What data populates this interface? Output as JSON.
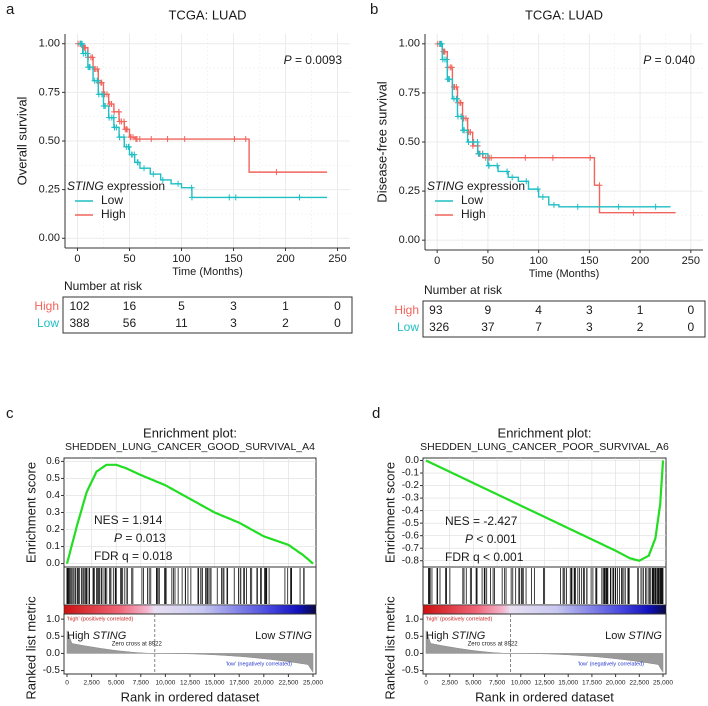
{
  "colors": {
    "high": "#f0655c",
    "low": "#1fbfc4",
    "gsea_line": "#22dd22",
    "grid": "#ebebeb"
  },
  "panels": {
    "a": {
      "letter": "a",
      "title": "TCGA: LUAD",
      "ylabel": "Overall survival",
      "xlabel": "Time (Months)",
      "pvalue_label": "P",
      "pvalue_text": " = 0.0093",
      "legend_title_italic": "STING",
      "legend_title_rest": " expression",
      "legend_low": "Low",
      "legend_high": "High",
      "yticks": [
        "1.00",
        "0.75",
        "0.50",
        "0.25",
        "0.00"
      ],
      "xticks": [
        "0",
        "50",
        "100",
        "150",
        "200",
        "250"
      ],
      "risk_title": "Number at risk",
      "risk_rows": [
        {
          "label": "High",
          "values": [
            "102",
            "16",
            "5",
            "3",
            "1",
            "0"
          ]
        },
        {
          "label": "Low",
          "values": [
            "388",
            "56",
            "11",
            "3",
            "2",
            "0"
          ]
        }
      ]
    },
    "b": {
      "letter": "b",
      "title": "TCGA: LUAD",
      "ylabel": "Disease-free survival",
      "xlabel": "Time (Months)",
      "pvalue_label": "P",
      "pvalue_text": " = 0.040",
      "legend_title_italic": "STING",
      "legend_title_rest": " expression",
      "legend_low": "Low",
      "legend_high": "High",
      "yticks": [
        "1.00",
        "0.75",
        "0.50",
        "0.25",
        "0.00"
      ],
      "xticks": [
        "0",
        "50",
        "100",
        "150",
        "200",
        "250"
      ],
      "risk_title": "Number at risk",
      "risk_rows": [
        {
          "label": "High",
          "values": [
            "93",
            "9",
            "4",
            "3",
            "1",
            "0"
          ]
        },
        {
          "label": "Low",
          "values": [
            "326",
            "37",
            "7",
            "3",
            "2",
            "0"
          ]
        }
      ]
    },
    "c": {
      "letter": "c",
      "title_line1": "Enrichment plot:",
      "title_line2": "SHEDDEN_LUNG_CANCER_GOOD_SURVIVAL_A4",
      "ylabel_top": "Enrichment score",
      "ylabel_bottom": "Ranked list metric",
      "xlabel": "Rank in ordered dataset",
      "es_ticks": [
        "0.6",
        "0.5",
        "0.4",
        "0.3",
        "0.2",
        "0.1",
        "0.0"
      ],
      "metric_ticks": [
        "1.0",
        "0.5",
        "0.0",
        "-0.5"
      ],
      "xticks": [
        "0",
        "2,500",
        "5,000",
        "7,500",
        "10,000",
        "12,500",
        "15,000",
        "17,500",
        "20,000",
        "22,500",
        "25,000"
      ],
      "stats": [
        "NES = 1.914",
        "P",
        " = 0.013",
        "FDR q = 0.018"
      ],
      "high_label": "High",
      "high_gene": "STING",
      "low_label": "Low",
      "low_gene": "STING",
      "pos_corr": "'high' (positively correlated)",
      "neg_corr": "'low' (negatively correlated)",
      "zero_cross": "Zero cross at 8922"
    },
    "d": {
      "letter": "d",
      "title_line1": "Enrichment plot:",
      "title_line2": "SHEDDEN_LUNG_CANCER_POOR_SURVIVAL_A6",
      "ylabel_top": "Enrichment score",
      "ylabel_bottom": "Ranked list metric",
      "xlabel": "Rank in ordered dataset",
      "es_ticks": [
        "0.0",
        "-0.1",
        "-0.2",
        "-0.3",
        "-0.4",
        "-0.5",
        "-0.6",
        "-0.7",
        "-0.8"
      ],
      "metric_ticks": [
        "1.0",
        "0.5",
        "0.0",
        "-0.5"
      ],
      "xticks": [
        "0",
        "2,500",
        "5,000",
        "7,500",
        "10,000",
        "12,500",
        "15,000",
        "17,500",
        "20,000",
        "22,500",
        "25,000"
      ],
      "stats": [
        "NES = -2.427",
        "P",
        " < 0.001",
        "FDR q < 0.001"
      ],
      "high_label": "High",
      "high_gene": "STING",
      "low_label": "Low",
      "low_gene": "STING",
      "pos_corr": "'high' (positively correlated)",
      "neg_corr": "'low' (negatively correlated)",
      "zero_cross": "Zero cross at 8922"
    }
  },
  "chart_data": [
    {
      "panel": "a",
      "type": "line",
      "title": "TCGA: LUAD",
      "xlabel": "Time (Months)",
      "ylabel": "Overall survival",
      "xlim": [
        0,
        250
      ],
      "ylim": [
        0,
        1
      ],
      "series": [
        {
          "name": "High",
          "x": [
            0,
            5,
            10,
            15,
            20,
            25,
            30,
            35,
            40,
            45,
            50,
            55,
            60,
            80,
            100,
            120,
            160,
            165,
            240
          ],
          "y": [
            1.0,
            0.98,
            0.93,
            0.87,
            0.8,
            0.74,
            0.69,
            0.65,
            0.6,
            0.56,
            0.52,
            0.51,
            0.51,
            0.51,
            0.51,
            0.51,
            0.51,
            0.34,
            0.34
          ]
        },
        {
          "name": "Low",
          "x": [
            0,
            5,
            10,
            15,
            20,
            25,
            30,
            35,
            40,
            45,
            50,
            55,
            60,
            70,
            80,
            90,
            100,
            110,
            120,
            150,
            200,
            240
          ],
          "y": [
            1.0,
            0.95,
            0.88,
            0.81,
            0.74,
            0.68,
            0.62,
            0.57,
            0.52,
            0.47,
            0.43,
            0.39,
            0.36,
            0.33,
            0.3,
            0.28,
            0.26,
            0.21,
            0.21,
            0.21,
            0.21,
            0.21
          ]
        }
      ]
    },
    {
      "panel": "b",
      "type": "line",
      "title": "TCGA: LUAD",
      "xlabel": "Time (Months)",
      "ylabel": "Disease-free survival",
      "xlim": [
        0,
        250
      ],
      "ylim": [
        0,
        1
      ],
      "series": [
        {
          "name": "High",
          "x": [
            0,
            5,
            10,
            15,
            20,
            25,
            30,
            35,
            40,
            45,
            60,
            100,
            150,
            155,
            160,
            235
          ],
          "y": [
            1.0,
            0.96,
            0.88,
            0.78,
            0.7,
            0.62,
            0.55,
            0.48,
            0.44,
            0.42,
            0.42,
            0.42,
            0.42,
            0.28,
            0.14,
            0.14
          ]
        },
        {
          "name": "Low",
          "x": [
            0,
            5,
            10,
            15,
            20,
            25,
            30,
            40,
            50,
            60,
            70,
            80,
            90,
            100,
            110,
            120,
            150,
            200,
            230
          ],
          "y": [
            1.0,
            0.92,
            0.82,
            0.72,
            0.63,
            0.56,
            0.5,
            0.44,
            0.38,
            0.35,
            0.32,
            0.3,
            0.26,
            0.22,
            0.18,
            0.17,
            0.17,
            0.17,
            0.17
          ]
        }
      ]
    },
    {
      "panel": "c",
      "type": "line",
      "title": "Enrichment plot: SHEDDEN_LUNG_CANCER_GOOD_SURVIVAL_A4",
      "xlabel": "Rank in ordered dataset",
      "ylabel": "Enrichment score",
      "xlim": [
        0,
        25000
      ],
      "ylim": [
        0,
        0.6
      ],
      "x": [
        0,
        1000,
        2000,
        3000,
        4000,
        5000,
        6000,
        7500,
        10000,
        12500,
        15000,
        17500,
        20000,
        22500,
        24000,
        25000
      ],
      "y": [
        0,
        0.22,
        0.42,
        0.54,
        0.58,
        0.58,
        0.56,
        0.52,
        0.46,
        0.38,
        0.3,
        0.24,
        0.16,
        0.11,
        0.05,
        0.0
      ],
      "nes": 1.914,
      "p": 0.013,
      "fdr_q": 0.018,
      "zero_cross": 8922
    },
    {
      "panel": "d",
      "type": "line",
      "title": "Enrichment plot: SHEDDEN_LUNG_CANCER_POOR_SURVIVAL_A6",
      "xlabel": "Rank in ordered dataset",
      "ylabel": "Enrichment score",
      "xlim": [
        0,
        25000
      ],
      "ylim": [
        -0.8,
        0
      ],
      "x": [
        0,
        2500,
        5000,
        7500,
        10000,
        12500,
        15000,
        17500,
        20000,
        21500,
        22500,
        23500,
        24200,
        24700,
        25000
      ],
      "y": [
        0,
        -0.09,
        -0.18,
        -0.27,
        -0.36,
        -0.45,
        -0.54,
        -0.63,
        -0.72,
        -0.78,
        -0.8,
        -0.76,
        -0.62,
        -0.35,
        0.0
      ],
      "nes": -2.427,
      "p": 0.001,
      "fdr_q": 0.001,
      "zero_cross": 8922
    }
  ]
}
